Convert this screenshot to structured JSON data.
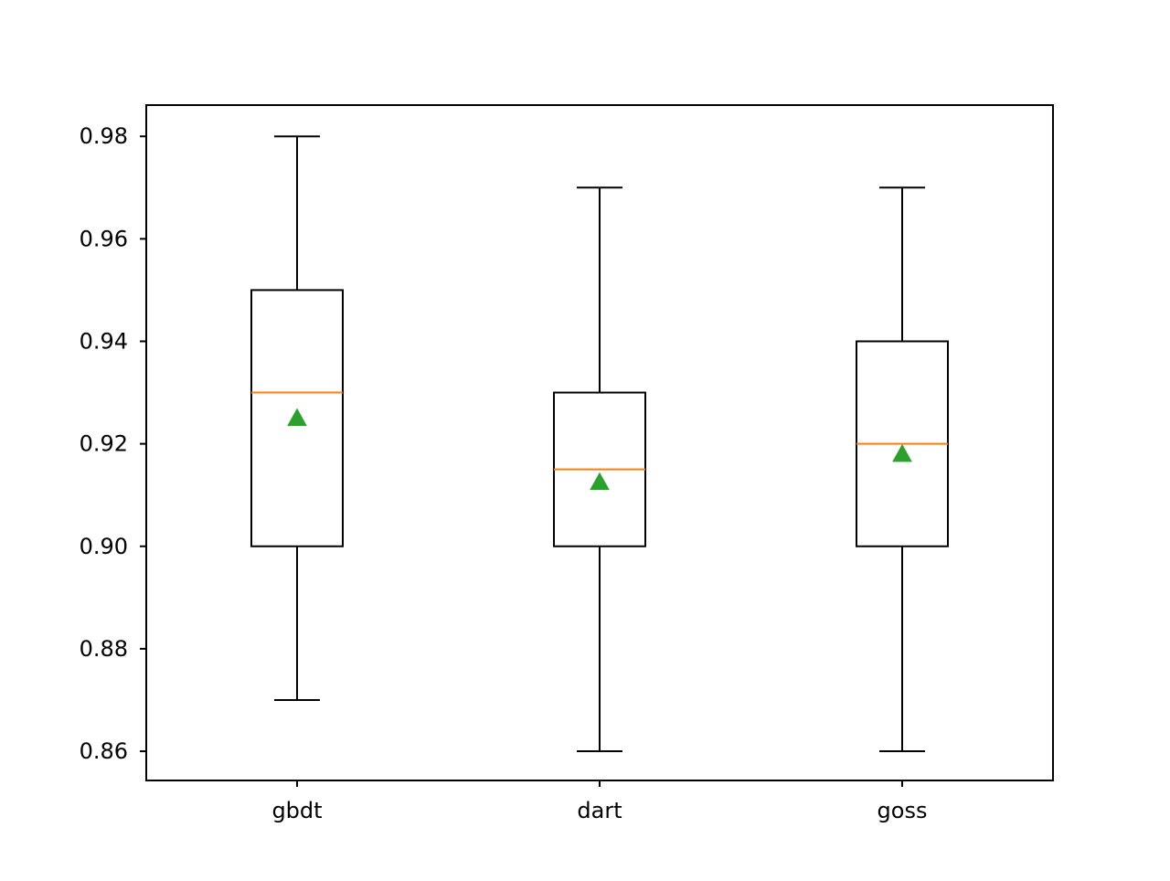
{
  "chart_data": {
    "type": "boxplot",
    "title": "",
    "xlabel": "",
    "ylabel": "",
    "categories": [
      "gbdt",
      "dart",
      "goss"
    ],
    "boxes": [
      {
        "label": "gbdt",
        "whisker_low": 0.87,
        "q1": 0.9,
        "median": 0.93,
        "q3": 0.95,
        "whisker_high": 0.98,
        "mean": 0.925
      },
      {
        "label": "dart",
        "whisker_low": 0.86,
        "q1": 0.9,
        "median": 0.915,
        "q3": 0.93,
        "whisker_high": 0.97,
        "mean": 0.9125
      },
      {
        "label": "goss",
        "whisker_low": 0.86,
        "q1": 0.9,
        "median": 0.92,
        "q3": 0.94,
        "whisker_high": 0.97,
        "mean": 0.918
      }
    ],
    "ylim": [
      0.8543,
      0.9861
    ],
    "yticks": [
      0.86,
      0.88,
      0.9,
      0.92,
      0.94,
      0.96,
      0.98
    ],
    "ytick_labels": [
      "0.86",
      "0.88",
      "0.90",
      "0.92",
      "0.94",
      "0.96",
      "0.98"
    ],
    "grid": false,
    "legend": "none",
    "colors": {
      "box": "#000000",
      "median": "#ff7f0e",
      "mean_marker": "#2ca02c"
    }
  }
}
